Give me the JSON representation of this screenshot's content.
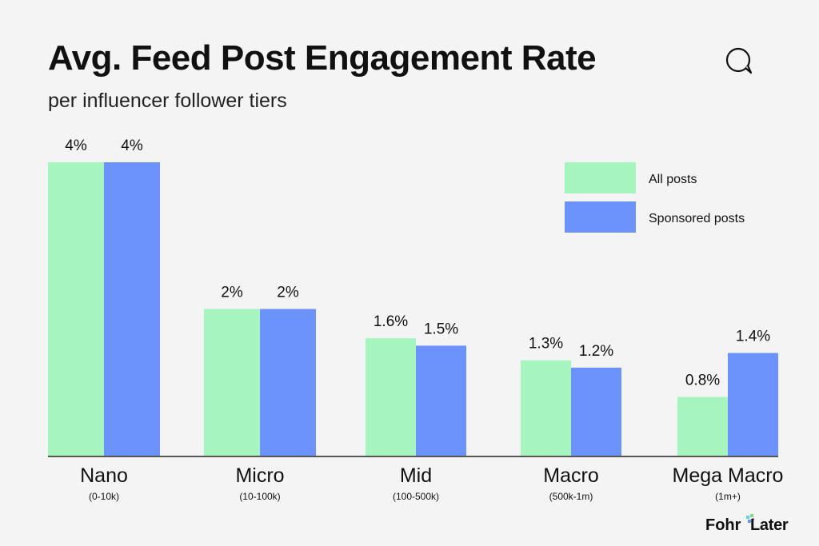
{
  "header": {
    "title": "Avg. Feed Post Engagement Rate",
    "subtitle": "per influencer follower tiers",
    "icon": "speech-bubble-icon"
  },
  "chart_data": {
    "type": "bar",
    "categories": [
      "Nano",
      "Micro",
      "Mid",
      "Macro",
      "Mega Macro"
    ],
    "category_sublabels": [
      "(0-10k)",
      "(10-100k)",
      "(100-500k)",
      "(500k-1m)",
      "(1m+)"
    ],
    "series": [
      {
        "name": "All posts",
        "values": [
          4,
          2,
          1.6,
          1.3,
          0.8
        ],
        "labels": [
          "4%",
          "2%",
          "1.6%",
          "1.3%",
          "0.8%"
        ],
        "color": "#a6f5bf"
      },
      {
        "name": "Sponsored posts",
        "values": [
          4,
          2,
          1.5,
          1.2,
          1.4
        ],
        "labels": [
          "4%",
          "2%",
          "1.5%",
          "1.2%",
          "1.4%"
        ],
        "color": "#6b93fb"
      }
    ],
    "ylim": [
      0,
      4
    ],
    "grid": false,
    "legend_position": "top-right",
    "xlabel": "",
    "ylabel": ""
  },
  "branding": {
    "left": "Fohr",
    "right": "Later"
  },
  "colors": {
    "background": "#f4f4f4",
    "text": "#111111",
    "axis": "#222222"
  }
}
